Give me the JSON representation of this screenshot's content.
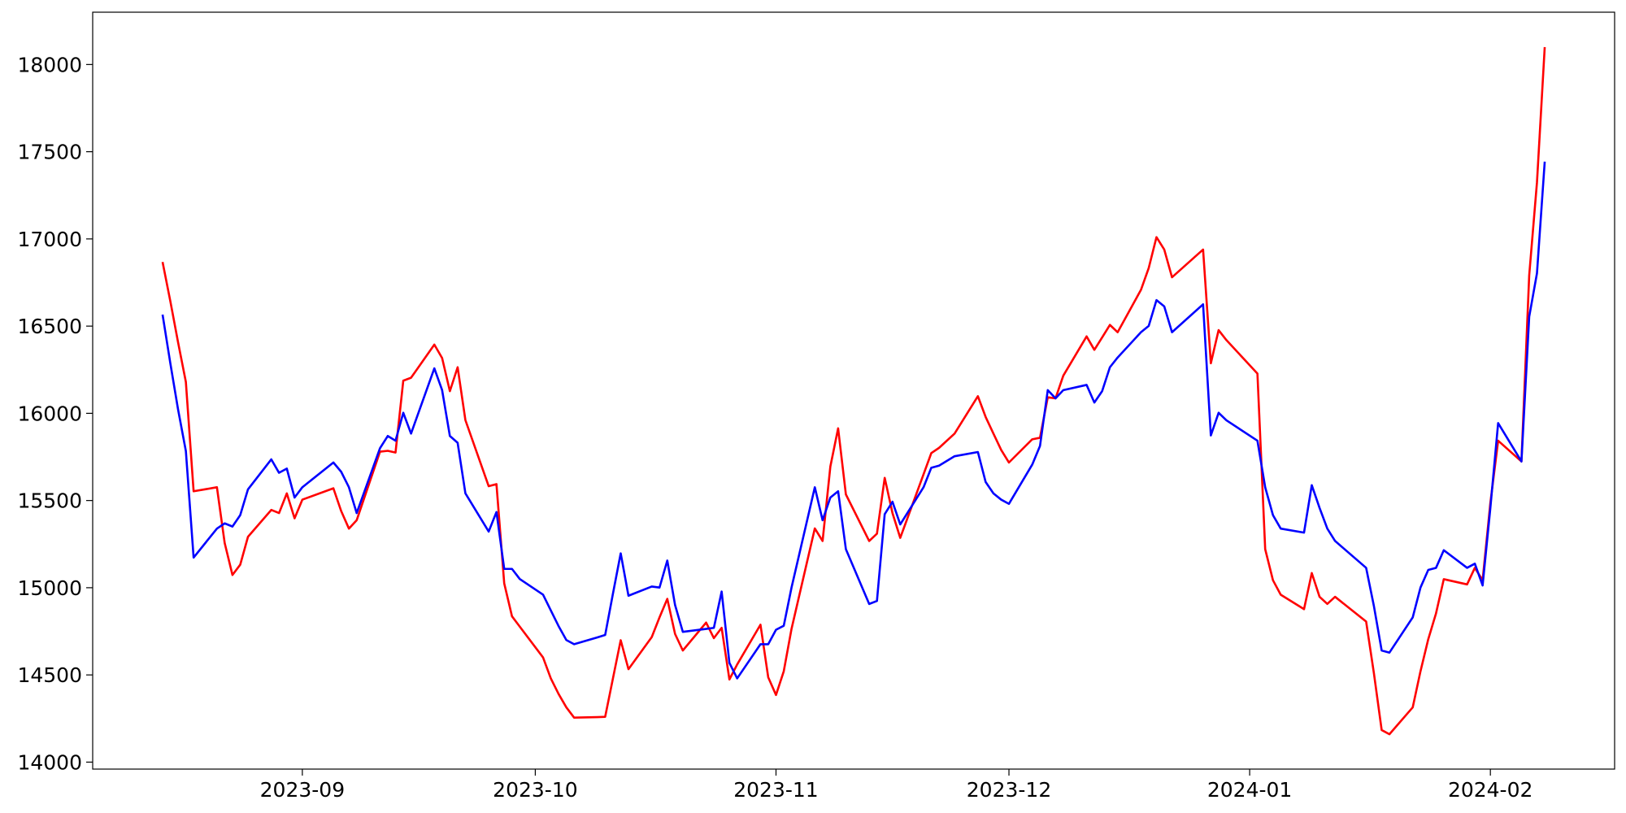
{
  "chart_data": {
    "type": "line",
    "x": [
      "2023-08-14",
      "2023-08-15",
      "2023-08-16",
      "2023-08-17",
      "2023-08-18",
      "2023-08-21",
      "2023-08-22",
      "2023-08-23",
      "2023-08-24",
      "2023-08-25",
      "2023-08-28",
      "2023-08-29",
      "2023-08-30",
      "2023-08-31",
      "2023-09-01",
      "2023-09-05",
      "2023-09-06",
      "2023-09-07",
      "2023-09-08",
      "2023-09-11",
      "2023-09-12",
      "2023-09-13",
      "2023-09-14",
      "2023-09-15",
      "2023-09-18",
      "2023-09-19",
      "2023-09-20",
      "2023-09-21",
      "2023-09-22",
      "2023-09-25",
      "2023-09-26",
      "2023-09-27",
      "2023-09-28",
      "2023-09-29",
      "2023-10-02",
      "2023-10-03",
      "2023-10-04",
      "2023-10-05",
      "2023-10-06",
      "2023-10-09",
      "2023-10-10",
      "2023-10-11",
      "2023-10-12",
      "2023-10-13",
      "2023-10-16",
      "2023-10-17",
      "2023-10-18",
      "2023-10-19",
      "2023-10-20",
      "2023-10-23",
      "2023-10-24",
      "2023-10-25",
      "2023-10-26",
      "2023-10-27",
      "2023-10-30",
      "2023-10-31",
      "2023-11-01",
      "2023-11-02",
      "2023-11-03",
      "2023-11-06",
      "2023-11-07",
      "2023-11-08",
      "2023-11-09",
      "2023-11-10",
      "2023-11-13",
      "2023-11-14",
      "2023-11-15",
      "2023-11-16",
      "2023-11-17",
      "2023-11-20",
      "2023-11-21",
      "2023-11-22",
      "2023-11-24",
      "2023-11-27",
      "2023-11-28",
      "2023-11-29",
      "2023-11-30",
      "2023-12-01",
      "2023-12-04",
      "2023-12-05",
      "2023-12-06",
      "2023-12-07",
      "2023-12-08",
      "2023-12-11",
      "2023-12-12",
      "2023-12-13",
      "2023-12-14",
      "2023-12-15",
      "2023-12-18",
      "2023-12-19",
      "2023-12-20",
      "2023-12-21",
      "2023-12-22",
      "2023-12-26",
      "2023-12-27",
      "2023-12-28",
      "2023-12-29",
      "2024-01-02",
      "2024-01-03",
      "2024-01-04",
      "2024-01-05",
      "2024-01-08",
      "2024-01-09",
      "2024-01-10",
      "2024-01-11",
      "2024-01-12",
      "2024-01-16",
      "2024-01-17",
      "2024-01-18",
      "2024-01-19",
      "2024-01-22",
      "2024-01-23",
      "2024-01-24",
      "2024-01-25",
      "2024-01-26",
      "2024-01-29",
      "2024-01-30",
      "2024-01-31",
      "2024-02-01",
      "2024-02-02",
      "2024-02-05",
      "2024-02-06",
      "2024-02-07",
      "2024-02-08"
    ],
    "series": [
      {
        "color": "red",
        "values": [
          16868,
          16643,
          16406,
          16180,
          15553,
          15576,
          15256,
          15073,
          15132,
          15292,
          15446,
          15428,
          15541,
          15398,
          15505,
          15570,
          15440,
          15339,
          15387,
          15780,
          15785,
          15775,
          16187,
          16204,
          16394,
          16317,
          16127,
          16264,
          15961,
          15582,
          15594,
          15025,
          14836,
          14777,
          14600,
          14480,
          14391,
          14314,
          14255,
          14258,
          14260,
          14480,
          14699,
          14533,
          14717,
          14830,
          14936,
          14735,
          14640,
          14800,
          14711,
          14770,
          14474,
          14560,
          14788,
          14486,
          14385,
          14521,
          14764,
          15340,
          15268,
          15695,
          15914,
          15535,
          15268,
          15310,
          15630,
          15428,
          15286,
          15650,
          15772,
          15802,
          15884,
          16098,
          15979,
          15884,
          15790,
          15718,
          15851,
          15860,
          16092,
          16086,
          16216,
          16441,
          16364,
          16435,
          16507,
          16465,
          16708,
          16833,
          17010,
          16939,
          16780,
          16939,
          16287,
          16477,
          16420,
          16228,
          15221,
          15043,
          14960,
          14877,
          15084,
          14948,
          14907,
          14948,
          14806,
          14510,
          14184,
          14160,
          14314,
          14521,
          14705,
          14853,
          15049,
          15019,
          15114,
          15043,
          15487,
          15843,
          15724,
          16791,
          17324,
          18100
        ]
      },
      {
        "color": "blue",
        "values": [
          16566,
          16287,
          16021,
          15784,
          15173,
          15339,
          15369,
          15351,
          15416,
          15564,
          15736,
          15659,
          15683,
          15517,
          15576,
          15718,
          15665,
          15576,
          15428,
          15800,
          15870,
          15843,
          16003,
          15884,
          16258,
          16133,
          15870,
          15831,
          15541,
          15322,
          15434,
          15108,
          15108,
          15050,
          14960,
          14870,
          14780,
          14700,
          14676,
          14715,
          14729,
          14966,
          15197,
          14954,
          15007,
          15001,
          15156,
          14901,
          14747,
          14764,
          14770,
          14978,
          14569,
          14480,
          14676,
          14676,
          14759,
          14782,
          15001,
          15576,
          15387,
          15517,
          15553,
          15221,
          14907,
          14924,
          15422,
          15493,
          15363,
          15576,
          15688,
          15700,
          15754,
          15778,
          15606,
          15541,
          15505,
          15481,
          15706,
          15813,
          16133,
          16086,
          16133,
          16163,
          16062,
          16127,
          16264,
          16320,
          16465,
          16501,
          16649,
          16613,
          16465,
          16625,
          15873,
          16003,
          15960,
          15843,
          15576,
          15416,
          15339,
          15316,
          15588,
          15458,
          15339,
          15268,
          15114,
          14895,
          14640,
          14628,
          14830,
          15001,
          15102,
          15114,
          15215,
          15114,
          15138,
          15013,
          15458,
          15944,
          15724,
          16554,
          16803,
          17443
        ]
      }
    ],
    "xlim": [
      "2023-08-05",
      "2024-02-17"
    ],
    "xticks": [
      "2023-09",
      "2023-10",
      "2023-11",
      "2023-12",
      "2024-01",
      "2024-02"
    ],
    "ylim": [
      13960,
      18300
    ],
    "yticks": [
      14000,
      14500,
      15000,
      15500,
      16000,
      16500,
      17000,
      17500,
      18000
    ],
    "grid": false
  }
}
